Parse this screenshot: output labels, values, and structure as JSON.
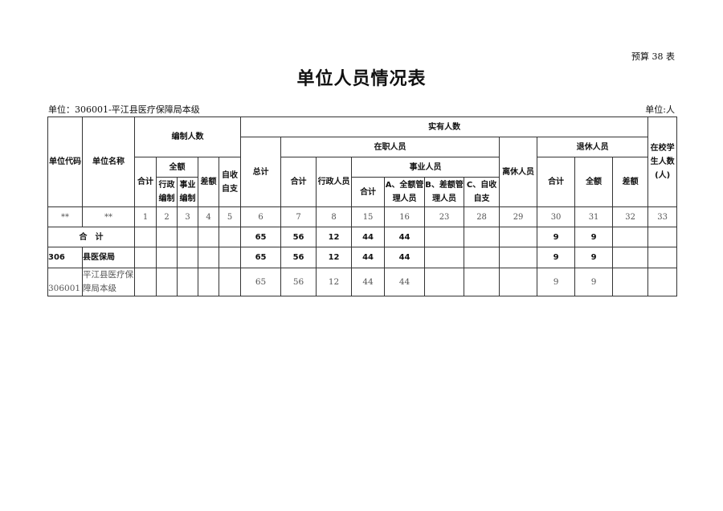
{
  "form_no": "预算 38 表",
  "title": "单位人员情况表",
  "unit_left": "单位：306001-平江县医疗保障局本级",
  "unit_right": "单位:人",
  "headers": {
    "code": "单位代码",
    "name": "单位名称",
    "bianzhi": "编制人数",
    "shiyou": "实有人数",
    "student": "在校学生人数(人)",
    "total": "总计",
    "zaizhi": "在职人员",
    "lixiu": "离休人员",
    "tuixiu": "退休人员",
    "bz_heji": "合计",
    "bz_quane": "全额",
    "bz_chae": "差额",
    "bz_zishou": "自收自支",
    "zz_heji": "合计",
    "zz_xingzheng": "行政人员",
    "shiye": "事业人员",
    "tx_heji": "合计",
    "tx_quane": "全额",
    "tx_chae": "差额",
    "xz_bianzhi": "行政编制",
    "sy_bianzhi": "事业编制",
    "sy_heji": "合计",
    "sy_a": "A、全额管理人员",
    "sy_b": "B、差额管理人员",
    "sy_c": "C、自收自支"
  },
  "col_numbers": [
    "**",
    "**",
    "1",
    "2",
    "3",
    "4",
    "5",
    "6",
    "7",
    "8",
    "15",
    "16",
    "23",
    "28",
    "29",
    "30",
    "31",
    "32",
    "33"
  ],
  "rows": [
    {
      "label": "合　计",
      "values": [
        "",
        "",
        "",
        "",
        "",
        "65",
        "56",
        "12",
        "44",
        "44",
        "",
        "",
        "",
        "9",
        "9",
        "",
        ""
      ]
    },
    {
      "code": "306",
      "name": "县医保局",
      "values": [
        "",
        "",
        "",
        "",
        "",
        "65",
        "56",
        "12",
        "44",
        "44",
        "",
        "",
        "",
        "9",
        "9",
        "",
        ""
      ]
    },
    {
      "code": "306001",
      "name": "平江县医疗保障局本级",
      "values": [
        "",
        "",
        "",
        "",
        "",
        "65",
        "56",
        "12",
        "44",
        "44",
        "",
        "",
        "",
        "9",
        "9",
        "",
        ""
      ]
    }
  ]
}
